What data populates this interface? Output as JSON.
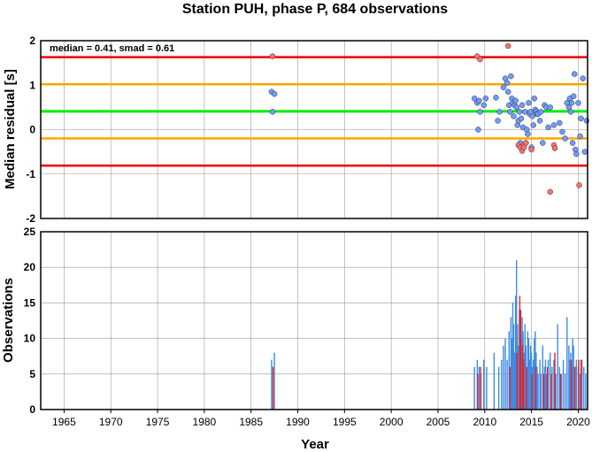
{
  "chart_data": [
    {
      "type": "scatter",
      "title": "Station PUH, phase P, 684 observations",
      "ylabel": "Median residual [s]",
      "annotation": "median = 0.41, smad = 0.61",
      "xlim": [
        1962.5,
        2021
      ],
      "ylim": [
        -2,
        2
      ],
      "xticks": [
        1965,
        1970,
        1975,
        1980,
        1985,
        1990,
        1995,
        2000,
        2005,
        2010,
        2015,
        2020
      ],
      "yticks": [
        -2,
        -1,
        0,
        1,
        2
      ],
      "reference_lines": [
        {
          "name": "median",
          "y": 0.41,
          "color": "#00ee00"
        },
        {
          "name": "median + 1 smad",
          "y": 1.02,
          "color": "#ffa500"
        },
        {
          "name": "median - 1 smad",
          "y": -0.2,
          "color": "#ffa500"
        },
        {
          "name": "median + 2 smad",
          "y": 1.63,
          "color": "#ee0000"
        },
        {
          "name": "median - 2 smad",
          "y": -0.81,
          "color": "#ee0000"
        }
      ],
      "colors": {
        "inlier": "#6f9bff",
        "outlier": "#ff6f6f"
      },
      "series": [
        {
          "name": "inliers",
          "points": [
            [
              1987.2,
              0.85
            ],
            [
              1987.5,
              0.8
            ],
            [
              1987.3,
              0.4
            ],
            [
              2008.9,
              0.7
            ],
            [
              2009.2,
              0.6
            ],
            [
              2009.4,
              0.65
            ],
            [
              2009.5,
              0.4
            ],
            [
              2009.3,
              0.0
            ],
            [
              2009.9,
              0.55
            ],
            [
              2010.1,
              0.7
            ],
            [
              2011.2,
              0.72
            ],
            [
              2011.4,
              0.2
            ],
            [
              2011.6,
              0.4
            ],
            [
              2012.0,
              0.95
            ],
            [
              2012.2,
              1.15
            ],
            [
              2012.4,
              1.05
            ],
            [
              2012.5,
              0.85
            ],
            [
              2012.6,
              0.55
            ],
            [
              2012.7,
              0.4
            ],
            [
              2012.8,
              1.2
            ],
            [
              2012.9,
              0.7
            ],
            [
              2013.0,
              0.6
            ],
            [
              2013.1,
              0.3
            ],
            [
              2013.2,
              0.55
            ],
            [
              2013.3,
              0.65
            ],
            [
              2013.4,
              0.5
            ],
            [
              2013.5,
              0.1
            ],
            [
              2013.6,
              0.2
            ],
            [
              2013.7,
              0.4
            ],
            [
              2013.8,
              -0.3
            ],
            [
              2013.9,
              0.25
            ],
            [
              2014.0,
              0.55
            ],
            [
              2014.1,
              0.05
            ],
            [
              2014.3,
              0.4
            ],
            [
              2014.4,
              -0.3
            ],
            [
              2014.5,
              0.0
            ],
            [
              2014.6,
              -0.1
            ],
            [
              2014.7,
              0.6
            ],
            [
              2014.8,
              0.35
            ],
            [
              2014.9,
              0.4
            ],
            [
              2015.0,
              -0.4
            ],
            [
              2015.1,
              0.3
            ],
            [
              2015.2,
              0.1
            ],
            [
              2015.3,
              0.7
            ],
            [
              2015.4,
              0.45
            ],
            [
              2015.5,
              0.4
            ],
            [
              2015.6,
              0.35
            ],
            [
              2015.7,
              0.35
            ],
            [
              2015.9,
              0.2
            ],
            [
              2016.0,
              0.4
            ],
            [
              2016.2,
              -0.3
            ],
            [
              2016.4,
              0.55
            ],
            [
              2016.6,
              0.5
            ],
            [
              2016.8,
              0.05
            ],
            [
              2017.0,
              0.5
            ],
            [
              2017.4,
              0.1
            ],
            [
              2018.0,
              0.15
            ],
            [
              2018.3,
              -0.05
            ],
            [
              2018.6,
              -0.2
            ],
            [
              2018.8,
              0.6
            ],
            [
              2019.0,
              0.5
            ],
            [
              2019.1,
              0.7
            ],
            [
              2019.2,
              0.4
            ],
            [
              2019.3,
              0.6
            ],
            [
              2019.4,
              -0.3
            ],
            [
              2019.5,
              0.75
            ],
            [
              2019.6,
              1.25
            ],
            [
              2019.7,
              -0.45
            ],
            [
              2019.8,
              -0.55
            ],
            [
              2020.0,
              0.6
            ],
            [
              2020.2,
              -0.15
            ],
            [
              2020.3,
              0.25
            ],
            [
              2020.5,
              1.15
            ],
            [
              2020.7,
              -0.5
            ],
            [
              2020.9,
              0.2
            ]
          ]
        },
        {
          "name": "outliers",
          "points": [
            [
              1987.3,
              1.65
            ],
            [
              2009.2,
              1.65
            ],
            [
              2009.5,
              1.58
            ],
            [
              2012.5,
              1.88
            ],
            [
              2013.6,
              -0.35
            ],
            [
              2013.8,
              -0.4
            ],
            [
              2014.0,
              -0.48
            ],
            [
              2014.2,
              -0.4
            ],
            [
              2014.4,
              -0.3
            ],
            [
              2015.0,
              -0.45
            ],
            [
              2017.0,
              -1.4
            ],
            [
              2017.4,
              -0.35
            ],
            [
              2017.5,
              -0.42
            ],
            [
              2020.1,
              -1.25
            ]
          ]
        }
      ]
    },
    {
      "type": "bar",
      "ylabel": "Observations",
      "xlabel": "Year",
      "xlim": [
        1962.5,
        2021
      ],
      "ylim": [
        0,
        25
      ],
      "yticks": [
        0,
        5,
        10,
        15,
        20,
        25
      ],
      "colors": {
        "inlier": "#3c8ce6",
        "outlier": "#ee2020"
      },
      "bars": [
        [
          1987.2,
          7,
          0
        ],
        [
          1987.5,
          8,
          0
        ],
        [
          1987.35,
          6,
          1
        ],
        [
          2008.9,
          6,
          0
        ],
        [
          2009.2,
          7,
          0
        ],
        [
          2009.4,
          6,
          0
        ],
        [
          2009.6,
          5,
          0
        ],
        [
          2009.9,
          7,
          0
        ],
        [
          2010.2,
          6,
          0
        ],
        [
          2009.25,
          5,
          1
        ],
        [
          2009.55,
          6,
          1
        ],
        [
          2011.0,
          8,
          0
        ],
        [
          2011.5,
          6,
          0
        ],
        [
          2011.8,
          7,
          0
        ],
        [
          2012.0,
          9,
          0
        ],
        [
          2012.2,
          10,
          0
        ],
        [
          2012.4,
          7,
          0
        ],
        [
          2012.6,
          11,
          0
        ],
        [
          2012.8,
          13,
          0
        ],
        [
          2012.9,
          10,
          0
        ],
        [
          2013.0,
          15,
          0
        ],
        [
          2013.1,
          12,
          0
        ],
        [
          2013.2,
          8,
          0
        ],
        [
          2013.3,
          16,
          0
        ],
        [
          2013.4,
          21,
          0
        ],
        [
          2013.5,
          12,
          0
        ],
        [
          2013.6,
          9,
          0
        ],
        [
          2013.7,
          14,
          0
        ],
        [
          2013.8,
          7,
          0
        ],
        [
          2013.9,
          10,
          0
        ],
        [
          2014.0,
          13,
          0
        ],
        [
          2014.1,
          11,
          0
        ],
        [
          2014.2,
          8,
          0
        ],
        [
          2014.3,
          12,
          0
        ],
        [
          2014.4,
          9,
          0
        ],
        [
          2014.5,
          6,
          0
        ],
        [
          2014.6,
          11,
          0
        ],
        [
          2014.7,
          10,
          0
        ],
        [
          2014.8,
          7,
          0
        ],
        [
          2014.9,
          9,
          0
        ],
        [
          2015.0,
          8,
          0
        ],
        [
          2015.1,
          6,
          0
        ],
        [
          2015.2,
          7,
          0
        ],
        [
          2015.3,
          10,
          0
        ],
        [
          2015.4,
          11,
          0
        ],
        [
          2015.5,
          8,
          0
        ],
        [
          2015.6,
          6,
          0
        ],
        [
          2015.7,
          5,
          0
        ],
        [
          2015.9,
          7,
          0
        ],
        [
          2016.0,
          5,
          0
        ],
        [
          2016.2,
          9,
          0
        ],
        [
          2016.4,
          6,
          0
        ],
        [
          2016.5,
          7,
          0
        ],
        [
          2016.6,
          5,
          0
        ],
        [
          2016.8,
          7,
          0
        ],
        [
          2017.0,
          8,
          0
        ],
        [
          2017.2,
          6,
          0
        ],
        [
          2017.4,
          7,
          0
        ],
        [
          2017.6,
          5,
          0
        ],
        [
          2017.8,
          12,
          0
        ],
        [
          2018.0,
          6,
          0
        ],
        [
          2018.2,
          5,
          0
        ],
        [
          2018.4,
          7,
          0
        ],
        [
          2018.6,
          5,
          0
        ],
        [
          2018.8,
          13,
          0
        ],
        [
          2019.0,
          9,
          0
        ],
        [
          2019.1,
          7,
          0
        ],
        [
          2019.2,
          8,
          0
        ],
        [
          2019.3,
          6,
          0
        ],
        [
          2019.4,
          10,
          0
        ],
        [
          2019.5,
          9,
          0
        ],
        [
          2019.6,
          6,
          0
        ],
        [
          2019.8,
          7,
          0
        ],
        [
          2020.0,
          6,
          0
        ],
        [
          2020.2,
          5,
          0
        ],
        [
          2020.4,
          7,
          0
        ],
        [
          2020.6,
          6,
          0
        ],
        [
          2020.8,
          5,
          0
        ],
        [
          2012.7,
          6,
          1
        ],
        [
          2013.45,
          8,
          1
        ],
        [
          2013.75,
          16,
          1
        ],
        [
          2013.85,
          14,
          1
        ],
        [
          2014.05,
          9,
          1
        ],
        [
          2014.15,
          7,
          1
        ],
        [
          2014.45,
          6,
          1
        ],
        [
          2015.05,
          5,
          1
        ],
        [
          2015.45,
          6,
          1
        ],
        [
          2016.3,
          5,
          1
        ],
        [
          2016.7,
          6,
          1
        ],
        [
          2017.15,
          5,
          1
        ],
        [
          2017.5,
          8,
          1
        ],
        [
          2018.1,
          5,
          1
        ],
        [
          2019.25,
          7,
          1
        ],
        [
          2019.65,
          6,
          1
        ],
        [
          2020.05,
          7,
          1
        ],
        [
          2020.3,
          7,
          1
        ]
      ]
    }
  ]
}
